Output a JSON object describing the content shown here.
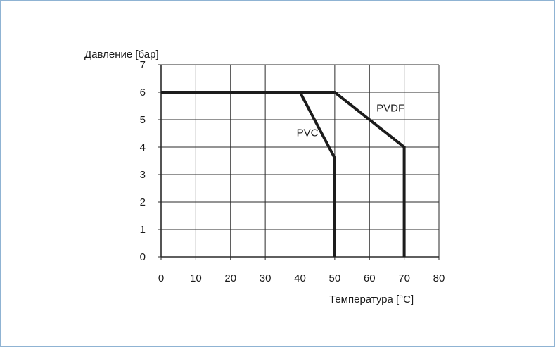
{
  "chart_data": {
    "type": "line",
    "ylabel": "Давление [бар]",
    "xlabel": "Температура [°C]",
    "xlim": [
      0,
      80
    ],
    "ylim": [
      0,
      7
    ],
    "x_ticks": [
      0,
      10,
      20,
      30,
      40,
      50,
      60,
      70,
      80
    ],
    "y_ticks": [
      0,
      1,
      2,
      3,
      4,
      5,
      6,
      7
    ],
    "grid": true,
    "series": [
      {
        "name": "PVC",
        "points": [
          [
            0,
            6
          ],
          [
            40,
            6
          ],
          [
            50,
            3.6
          ],
          [
            50,
            0
          ]
        ],
        "label_at": [
          39,
          4.4
        ]
      },
      {
        "name": "PVDF",
        "points": [
          [
            0,
            6
          ],
          [
            50,
            6
          ],
          [
            70,
            4
          ],
          [
            70,
            0
          ]
        ],
        "label_at": [
          62,
          5.3
        ]
      }
    ],
    "colors": {
      "line": "#1c1c1c",
      "grid": "#2a2a2a",
      "frame": "#8fb3d3"
    }
  }
}
